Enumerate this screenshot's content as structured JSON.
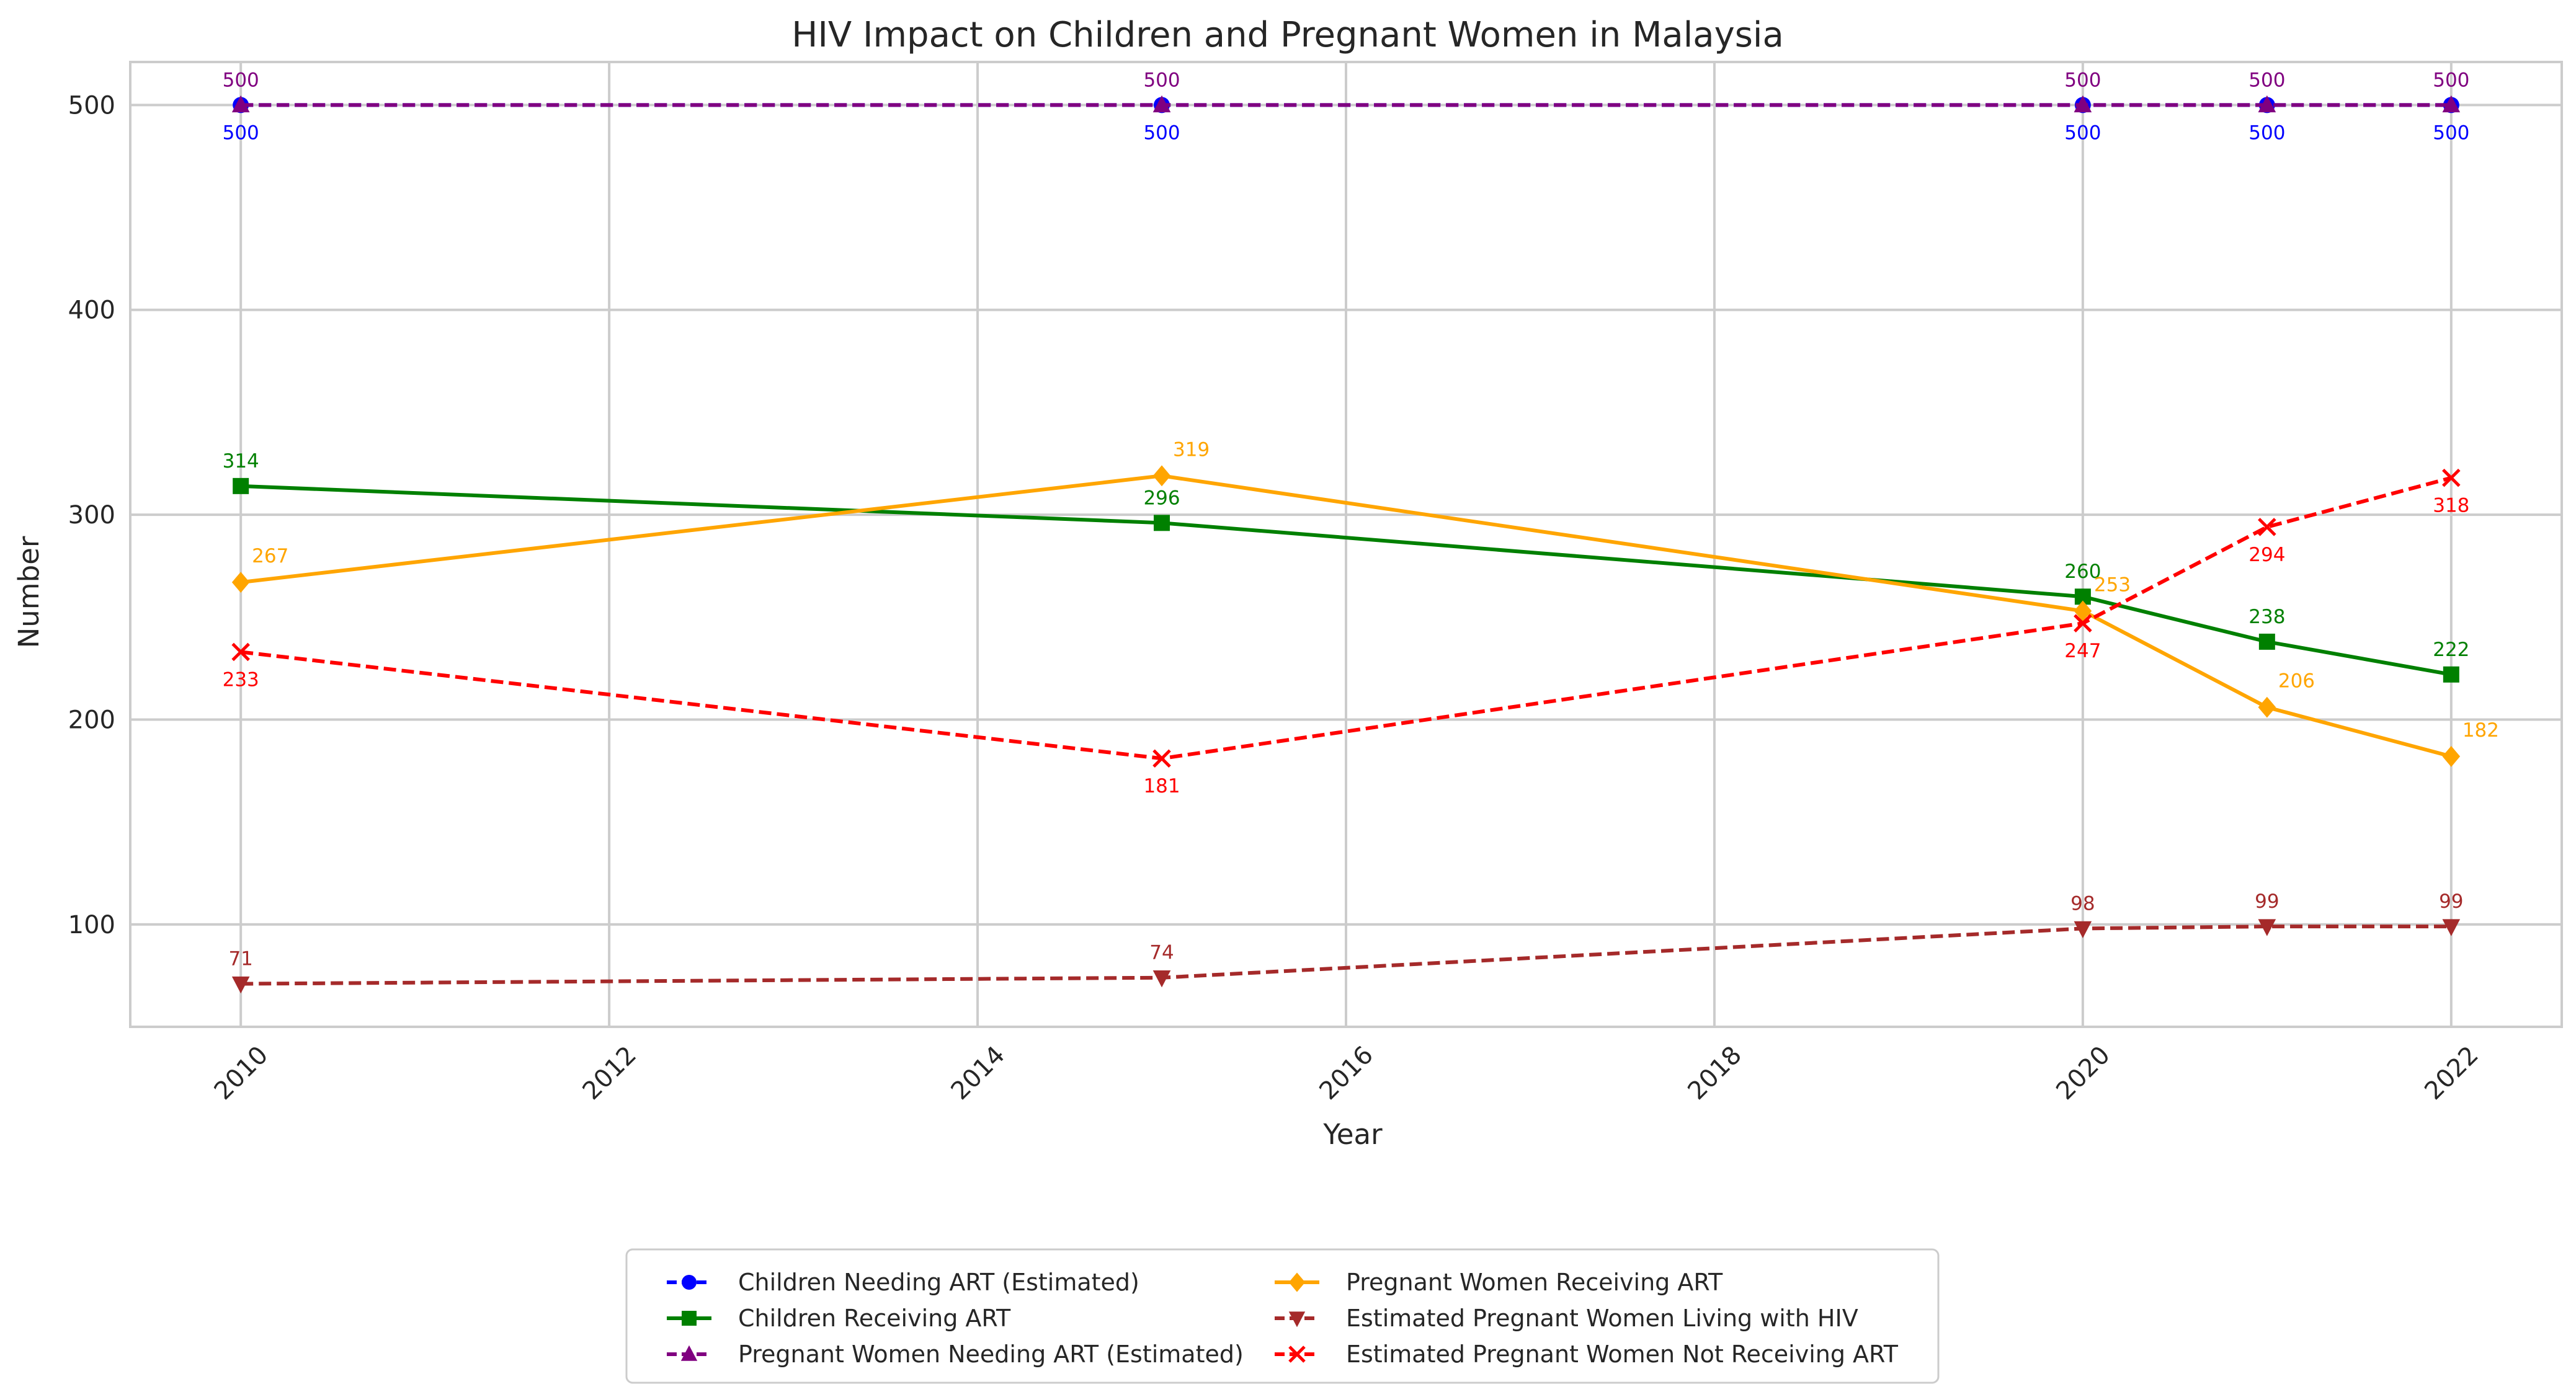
{
  "chart_data": {
    "type": "line",
    "title": "HIV Impact on Children and Pregnant Women in Malaysia",
    "xlabel": "Year",
    "ylabel": "Number",
    "x": [
      2010,
      2015,
      2020,
      2021,
      2022
    ],
    "xlim": [
      2009.4,
      2022.6
    ],
    "ylim": [
      50,
      521
    ],
    "xticks": [
      2010,
      2012,
      2014,
      2016,
      2018,
      2020,
      2022
    ],
    "yticks": [
      100,
      200,
      300,
      400,
      500
    ],
    "grid": true,
    "legend_position": "bottom-center",
    "series": [
      {
        "name": "Children Needing ART (Estimated)",
        "values": [
          500,
          500,
          500,
          500,
          500
        ],
        "color": "#0000ff",
        "marker": "circle",
        "linestyle": "dashed",
        "label_position": "below"
      },
      {
        "name": "Children Receiving ART",
        "values": [
          314,
          296,
          260,
          238,
          222
        ],
        "color": "#008000",
        "marker": "square",
        "linestyle": "solid",
        "label_position": "above"
      },
      {
        "name": "Pregnant Women Needing ART (Estimated)",
        "values": [
          500,
          500,
          500,
          500,
          500
        ],
        "color": "#800080",
        "marker": "triangle-up",
        "linestyle": "dashed",
        "label_position": "above"
      },
      {
        "name": "Pregnant Women Receiving ART",
        "values": [
          267,
          319,
          253,
          206,
          182
        ],
        "color": "#ffa500",
        "marker": "diamond",
        "linestyle": "solid",
        "label_position": "above-right"
      },
      {
        "name": "Estimated Pregnant Women Living with HIV",
        "values": [
          71,
          74,
          98,
          99,
          99
        ],
        "color": "#a52a2a",
        "marker": "triangle-down",
        "linestyle": "dashed",
        "label_position": "above"
      },
      {
        "name": "Estimated Pregnant Women Not Receiving ART",
        "values": [
          233,
          181,
          247,
          294,
          318
        ],
        "color": "#ff0000",
        "marker": "x",
        "linestyle": "dashed",
        "label_position": "below"
      }
    ]
  }
}
